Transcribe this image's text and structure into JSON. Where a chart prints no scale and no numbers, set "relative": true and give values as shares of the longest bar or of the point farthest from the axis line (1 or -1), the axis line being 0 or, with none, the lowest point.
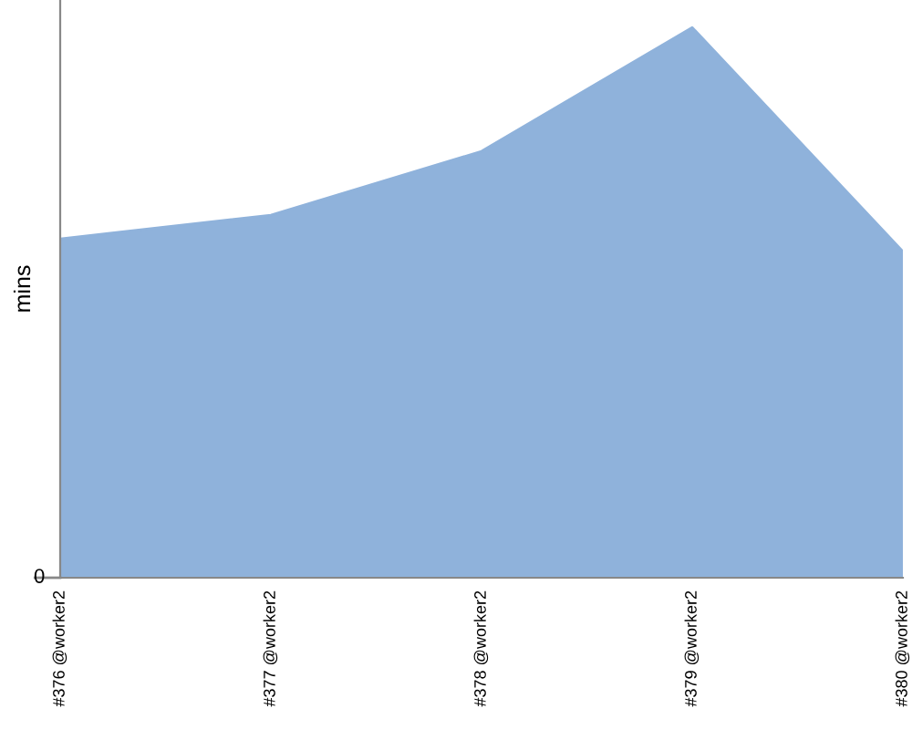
{
  "chart_data": {
    "type": "area",
    "relative": true,
    "ylabel": "mins",
    "color": "#8fb2db",
    "categories": [
      "#376 @worker2",
      "#377 @worker2",
      "#378 @worker2",
      "#379 @worker2",
      "#380 @worker2"
    ],
    "values": [
      0.616,
      0.659,
      0.775,
      1,
      0.593
    ],
    "annotations": [
      "0"
    ],
    "grid": false
  }
}
